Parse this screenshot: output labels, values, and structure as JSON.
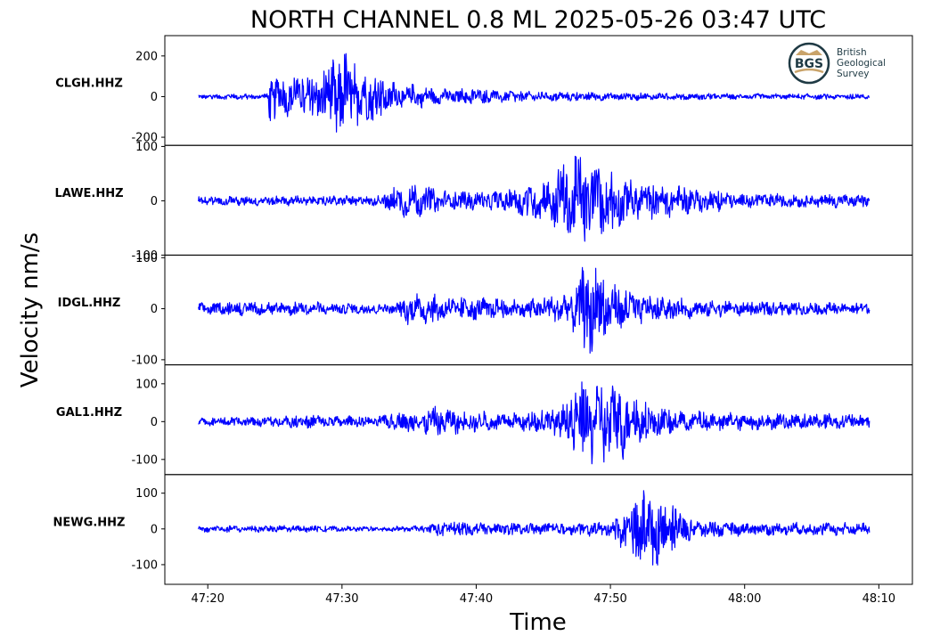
{
  "chart_data": {
    "type": "line",
    "title": "NORTH CHANNEL 0.8 ML   2025-05-26 03:47 UTC",
    "xlabel": "Time",
    "ylabel": "Velocity nm/s",
    "x_ticks": [
      "47:20",
      "47:30",
      "47:40",
      "47:50",
      "48:00",
      "48:10"
    ],
    "x_tick_seconds": [
      20,
      30,
      40,
      50,
      60,
      70
    ],
    "xlim_seconds": [
      16.8,
      72.5
    ],
    "trace_span_seconds": [
      19.3,
      69.3
    ],
    "line_color": "#0000ff",
    "grid": false,
    "logo": {
      "mark": "BGS",
      "lines": [
        "British",
        "Geological",
        "Survey"
      ]
    },
    "series": [
      {
        "name": "CLGH.HHZ",
        "ylim": [
          -240,
          300
        ],
        "yticks": [
          200,
          0,
          -200
        ],
        "ytick_labels": [
          "200",
          "0",
          "-200"
        ],
        "noise": 12,
        "envelope": [
          [
            19.3,
            12
          ],
          [
            24.4,
            15
          ],
          [
            24.6,
            120
          ],
          [
            26,
            90
          ],
          [
            28.5,
            110
          ],
          [
            29.8,
            235
          ],
          [
            31.5,
            140
          ],
          [
            33.5,
            75
          ],
          [
            37,
            40
          ],
          [
            45,
            22
          ],
          [
            60,
            14
          ],
          [
            69.3,
            12
          ]
        ]
      },
      {
        "name": "LAWE.HHZ",
        "ylim": [
          -100,
          102
        ],
        "yticks": [
          100,
          0,
          -100
        ],
        "ytick_labels": [
          "100",
          "0",
          "-100"
        ],
        "noise": 9,
        "envelope": [
          [
            19.3,
            8
          ],
          [
            33,
            10
          ],
          [
            33.5,
            26
          ],
          [
            35,
            34
          ],
          [
            38,
            16
          ],
          [
            42,
            18
          ],
          [
            45,
            38
          ],
          [
            47.5,
            92
          ],
          [
            49.5,
            58
          ],
          [
            52,
            34
          ],
          [
            57,
            20
          ],
          [
            60,
            13
          ],
          [
            69.3,
            11
          ]
        ]
      },
      {
        "name": "IDGL.HHZ",
        "ylim": [
          -110,
          105
        ],
        "yticks": [
          100,
          0,
          -100
        ],
        "ytick_labels": [
          "100",
          "0",
          "-100"
        ],
        "noise": 10,
        "envelope": [
          [
            19.3,
            11
          ],
          [
            25,
            14
          ],
          [
            30,
            11
          ],
          [
            34,
            9
          ],
          [
            35,
            30
          ],
          [
            37,
            26
          ],
          [
            44,
            17
          ],
          [
            47,
            32
          ],
          [
            48.5,
            98
          ],
          [
            50,
            52
          ],
          [
            53,
            22
          ],
          [
            60,
            13
          ],
          [
            69.3,
            11
          ]
        ]
      },
      {
        "name": "GAL1.HHZ",
        "ylim": [
          -140,
          150
        ],
        "yticks": [
          100,
          0,
          -100
        ],
        "ytick_labels": [
          "100",
          "0",
          "-100"
        ],
        "noise": 12,
        "envelope": [
          [
            19.3,
            9
          ],
          [
            23,
            12
          ],
          [
            28,
            18
          ],
          [
            32,
            12
          ],
          [
            35,
            28
          ],
          [
            37,
            38
          ],
          [
            42,
            20
          ],
          [
            46,
            36
          ],
          [
            48,
            100
          ],
          [
            50,
            118
          ],
          [
            52,
            58
          ],
          [
            55,
            28
          ],
          [
            60,
            22
          ],
          [
            69.3,
            18
          ]
        ]
      },
      {
        "name": "NEWG.HHZ",
        "ylim": [
          -155,
          152
        ],
        "yticks": [
          100,
          0,
          -100
        ],
        "ytick_labels": [
          "100",
          "0",
          "-100"
        ],
        "noise": 9,
        "envelope": [
          [
            19.3,
            9
          ],
          [
            25,
            10
          ],
          [
            30,
            7
          ],
          [
            36.5,
            8
          ],
          [
            37,
            22
          ],
          [
            40,
            17
          ],
          [
            47,
            15
          ],
          [
            50,
            22
          ],
          [
            51.5,
            70
          ],
          [
            52.3,
            140
          ],
          [
            54,
            82
          ],
          [
            56,
            30
          ],
          [
            60,
            18
          ],
          [
            69.3,
            16
          ]
        ]
      }
    ]
  }
}
